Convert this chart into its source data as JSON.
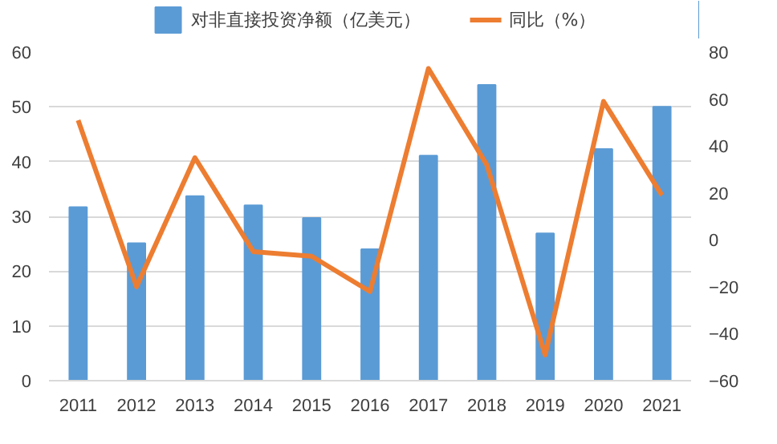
{
  "chart_data": {
    "type": "bar",
    "categories": [
      "2011",
      "2012",
      "2013",
      "2014",
      "2015",
      "2016",
      "2017",
      "2018",
      "2019",
      "2020",
      "2021"
    ],
    "series": [
      {
        "name": "对非直接投资净额（亿美元）",
        "color": "#5b9bd5",
        "values": [
          31.7,
          25.1,
          33.7,
          32,
          29.7,
          24,
          41.1,
          54,
          26.9,
          42.3,
          50
        ]
      },
      {
        "name": "同比（%）",
        "type": "line",
        "axis": "y2",
        "color": "#ed7d31",
        "values": [
          51,
          -20,
          35,
          -5,
          -7,
          -22,
          73,
          32,
          -49,
          59,
          19
        ]
      }
    ],
    "ylim": [
      0,
      60
    ],
    "yticks": [
      0,
      10,
      20,
      30,
      40,
      50,
      60
    ],
    "y2lim": [
      -60,
      80
    ],
    "y2ticks": [
      -60,
      -40,
      -20,
      0,
      20,
      40,
      60,
      80
    ],
    "grid": "y",
    "legend": "top",
    "marker": "none",
    "line_style": "solid"
  }
}
